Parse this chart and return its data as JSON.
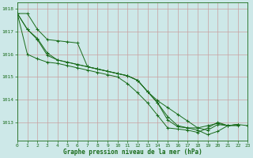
{
  "title": "Graphe pression niveau de la mer (hPa)",
  "background_color": "#cde8e8",
  "grid_color_major": "#b8d4d4",
  "grid_color_minor": "#d4e8e8",
  "line_color": "#1a6b1a",
  "xlim": [
    0,
    23
  ],
  "ylim": [
    1012.2,
    1018.3
  ],
  "yticks": [
    1013,
    1014,
    1015,
    1016,
    1017,
    1018
  ],
  "xticks": [
    0,
    1,
    2,
    3,
    4,
    5,
    6,
    7,
    8,
    9,
    10,
    11,
    12,
    13,
    14,
    15,
    16,
    17,
    18,
    19,
    20,
    21,
    22,
    23
  ],
  "series": [
    [
      1017.8,
      1017.1,
      1016.65,
      1015.95,
      1015.75,
      1015.65,
      1015.55,
      1015.45,
      1015.35,
      1015.25,
      1015.15,
      1015.05,
      1014.85,
      1014.35,
      1013.85,
      1013.25,
      1012.85,
      1012.75,
      1012.75,
      1012.85,
      1012.95,
      1012.85,
      1012.85,
      null
    ],
    [
      1017.8,
      1017.1,
      1016.7,
      1016.05,
      1015.75,
      1015.65,
      1015.55,
      1015.45,
      1015.35,
      1015.25,
      1015.15,
      1015.05,
      1014.85,
      1014.35,
      1013.95,
      1013.65,
      1013.35,
      1013.05,
      1012.75,
      1012.65,
      1012.9,
      1012.85,
      1012.9,
      null
    ],
    [
      1017.8,
      1016.0,
      1015.8,
      1015.65,
      1015.6,
      1015.5,
      1015.4,
      1015.3,
      1015.2,
      1015.1,
      1015.0,
      1014.7,
      1014.3,
      1013.85,
      1013.3,
      1012.75,
      1012.7,
      1012.65,
      1012.55,
      1012.75,
      1013.0,
      1012.85,
      1012.9,
      null
    ],
    [
      1017.8,
      1017.8,
      1017.1,
      1016.65,
      1016.6,
      1016.55,
      1016.5,
      1015.45,
      1015.35,
      1015.25,
      1015.15,
      1015.05,
      1014.85,
      1014.35,
      1013.85,
      1013.1,
      1012.8,
      1012.75,
      1012.65,
      1012.45,
      1012.6,
      1012.85,
      1012.9,
      1012.85
    ]
  ]
}
